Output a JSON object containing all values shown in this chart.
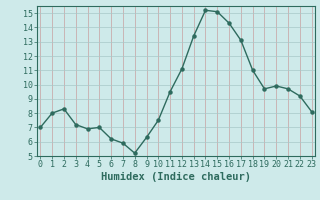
{
  "x": [
    0,
    1,
    2,
    3,
    4,
    5,
    6,
    7,
    8,
    9,
    10,
    11,
    12,
    13,
    14,
    15,
    16,
    17,
    18,
    19,
    20,
    21,
    22,
    23
  ],
  "y": [
    7.0,
    8.0,
    8.3,
    7.2,
    6.9,
    7.0,
    6.2,
    5.9,
    5.2,
    6.3,
    7.5,
    9.5,
    11.1,
    13.4,
    15.2,
    15.1,
    14.3,
    13.1,
    11.0,
    9.7,
    9.9,
    9.7,
    9.2,
    8.1
  ],
  "line_color": "#2e6b5e",
  "marker": "o",
  "marker_size": 2.2,
  "bg_color": "#ceeaea",
  "grid_color_x": "#c8a0a0",
  "grid_color_y": "#a8c8c8",
  "xlabel": "Humidex (Indice chaleur)",
  "ylim": [
    5,
    15.5
  ],
  "yticks": [
    5,
    6,
    7,
    8,
    9,
    10,
    11,
    12,
    13,
    14,
    15
  ],
  "xticks": [
    0,
    1,
    2,
    3,
    4,
    5,
    6,
    7,
    8,
    9,
    10,
    11,
    12,
    13,
    14,
    15,
    16,
    17,
    18,
    19,
    20,
    21,
    22,
    23
  ],
  "xlabel_fontsize": 7.5,
  "tick_fontsize": 6,
  "line_width": 1.0
}
